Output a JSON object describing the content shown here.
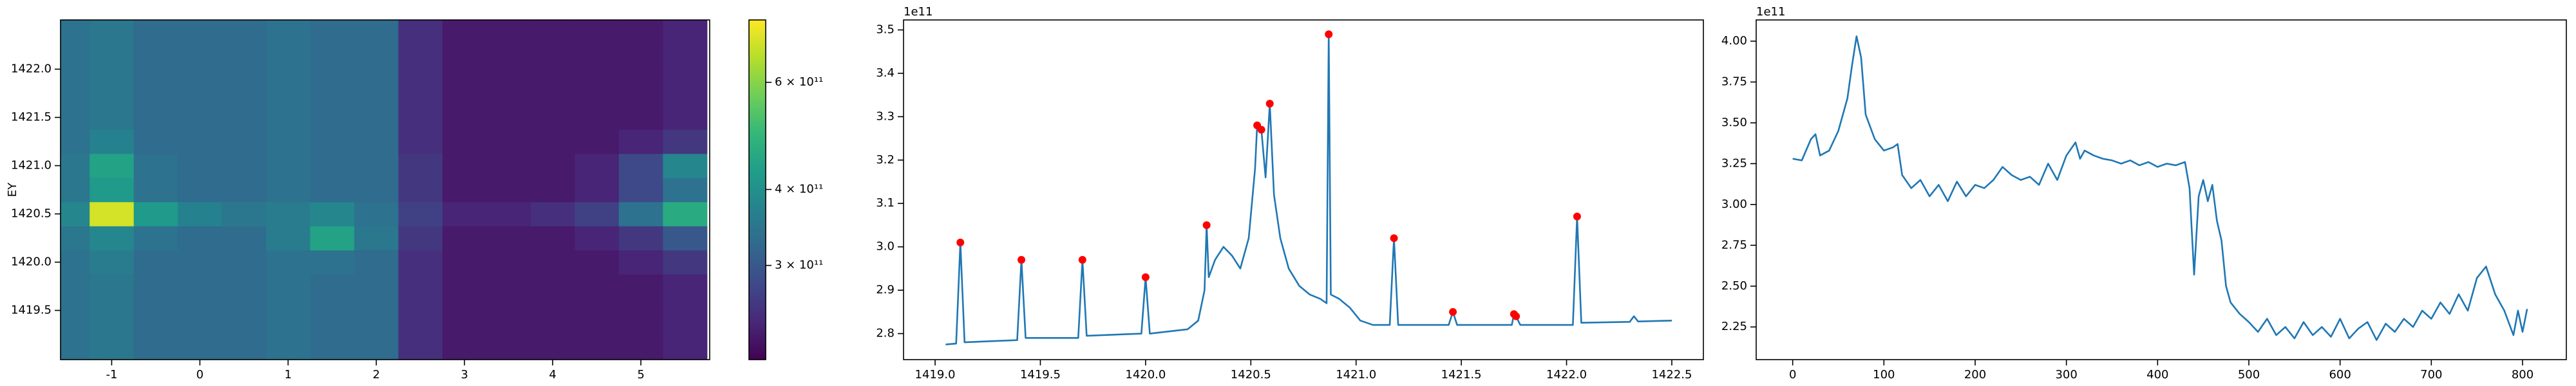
{
  "chart_data": [
    {
      "type": "heatmap",
      "ylabel": "EY",
      "colormap": "viridis",
      "x": [
        -1.5,
        -1.0,
        -0.5,
        0,
        0.5,
        1.0,
        1.5,
        2.0,
        2.5,
        3.0,
        3.5,
        4.0,
        4.5,
        5.0,
        5.5
      ],
      "y": [
        1419.0,
        1419.25,
        1419.5,
        1419.75,
        1420.0,
        1420.25,
        1420.5,
        1420.75,
        1421.0,
        1421.25,
        1421.5,
        1421.75,
        1422.0,
        1422.25,
        1422.5
      ],
      "z": [
        [
          340000000000.0,
          350000000000.0,
          330000000000.0,
          330000000000.0,
          330000000000.0,
          340000000000.0,
          330000000000.0,
          330000000000.0,
          250000000000.0,
          230000000000.0,
          230000000000.0,
          230000000000.0,
          230000000000.0,
          230000000000.0,
          240000000000.0
        ],
        [
          340000000000.0,
          350000000000.0,
          330000000000.0,
          330000000000.0,
          330000000000.0,
          340000000000.0,
          330000000000.0,
          330000000000.0,
          250000000000.0,
          230000000000.0,
          230000000000.0,
          230000000000.0,
          230000000000.0,
          230000000000.0,
          240000000000.0
        ],
        [
          340000000000.0,
          350000000000.0,
          330000000000.0,
          330000000000.0,
          330000000000.0,
          340000000000.0,
          330000000000.0,
          330000000000.0,
          250000000000.0,
          230000000000.0,
          230000000000.0,
          230000000000.0,
          230000000000.0,
          230000000000.0,
          240000000000.0
        ],
        [
          340000000000.0,
          350000000000.0,
          330000000000.0,
          330000000000.0,
          330000000000.0,
          340000000000.0,
          330000000000.0,
          330000000000.0,
          250000000000.0,
          230000000000.0,
          230000000000.0,
          230000000000.0,
          230000000000.0,
          230000000000.0,
          240000000000.0
        ],
        [
          340000000000.0,
          360000000000.0,
          330000000000.0,
          330000000000.0,
          330000000000.0,
          340000000000.0,
          340000000000.0,
          330000000000.0,
          250000000000.0,
          230000000000.0,
          230000000000.0,
          230000000000.0,
          230000000000.0,
          240000000000.0,
          260000000000.0
        ],
        [
          350000000000.0,
          380000000000.0,
          340000000000.0,
          330000000000.0,
          330000000000.0,
          360000000000.0,
          440000000000.0,
          350000000000.0,
          260000000000.0,
          230000000000.0,
          230000000000.0,
          230000000000.0,
          240000000000.0,
          260000000000.0,
          300000000000.0
        ],
        [
          380000000000.0,
          700000000000.0,
          420000000000.0,
          370000000000.0,
          350000000000.0,
          360000000000.0,
          380000000000.0,
          340000000000.0,
          270000000000.0,
          240000000000.0,
          240000000000.0,
          250000000000.0,
          270000000000.0,
          340000000000.0,
          460000000000.0
        ],
        [
          350000000000.0,
          420000000000.0,
          340000000000.0,
          330000000000.0,
          330000000000.0,
          340000000000.0,
          330000000000.0,
          330000000000.0,
          260000000000.0,
          230000000000.0,
          230000000000.0,
          230000000000.0,
          240000000000.0,
          280000000000.0,
          340000000000.0
        ],
        [
          350000000000.0,
          440000000000.0,
          340000000000.0,
          330000000000.0,
          330000000000.0,
          340000000000.0,
          330000000000.0,
          330000000000.0,
          260000000000.0,
          230000000000.0,
          230000000000.0,
          230000000000.0,
          240000000000.0,
          280000000000.0,
          380000000000.0
        ],
        [
          340000000000.0,
          370000000000.0,
          330000000000.0,
          330000000000.0,
          330000000000.0,
          340000000000.0,
          330000000000.0,
          330000000000.0,
          250000000000.0,
          230000000000.0,
          230000000000.0,
          230000000000.0,
          230000000000.0,
          240000000000.0,
          260000000000.0
        ],
        [
          340000000000.0,
          350000000000.0,
          330000000000.0,
          330000000000.0,
          330000000000.0,
          340000000000.0,
          330000000000.0,
          330000000000.0,
          250000000000.0,
          230000000000.0,
          230000000000.0,
          230000000000.0,
          230000000000.0,
          230000000000.0,
          240000000000.0
        ],
        [
          340000000000.0,
          350000000000.0,
          330000000000.0,
          330000000000.0,
          330000000000.0,
          340000000000.0,
          330000000000.0,
          330000000000.0,
          250000000000.0,
          230000000000.0,
          230000000000.0,
          230000000000.0,
          230000000000.0,
          230000000000.0,
          240000000000.0
        ],
        [
          340000000000.0,
          350000000000.0,
          330000000000.0,
          330000000000.0,
          330000000000.0,
          340000000000.0,
          330000000000.0,
          330000000000.0,
          250000000000.0,
          230000000000.0,
          230000000000.0,
          230000000000.0,
          230000000000.0,
          230000000000.0,
          240000000000.0
        ],
        [
          340000000000.0,
          350000000000.0,
          330000000000.0,
          330000000000.0,
          330000000000.0,
          340000000000.0,
          330000000000.0,
          330000000000.0,
          250000000000.0,
          230000000000.0,
          230000000000.0,
          230000000000.0,
          230000000000.0,
          230000000000.0,
          240000000000.0
        ],
        [
          340000000000.0,
          350000000000.0,
          330000000000.0,
          330000000000.0,
          330000000000.0,
          340000000000.0,
          330000000000.0,
          330000000000.0,
          250000000000.0,
          230000000000.0,
          230000000000.0,
          230000000000.0,
          230000000000.0,
          230000000000.0,
          240000000000.0
        ]
      ],
      "xlim": [
        -1.58,
        5.78
      ],
      "ylim": [
        1418.99,
        1422.51
      ],
      "xticks": [
        -1,
        0,
        1,
        2,
        3,
        4,
        5
      ],
      "yticks": [
        1419.5,
        {
          "value": 1420.0,
          "label": "1420.0"
        },
        1420.5,
        {
          "value": 1421.0,
          "label": "1421.0"
        },
        1421.5,
        {
          "value": 1422.0,
          "label": "1422.0"
        }
      ],
      "colorbar": {
        "scale": "log",
        "lim": [
          210000000000.0,
          760000000000.0
        ],
        "ticks": [
          {
            "value": 300000000000.0,
            "label": "3 × 10¹¹"
          },
          {
            "value": 400000000000.0,
            "label": "4 × 10¹¹"
          },
          {
            "value": 600000000000.0,
            "label": "6 × 10¹¹"
          }
        ]
      }
    },
    {
      "type": "line",
      "offset_label": "1e11",
      "series": [
        {
          "color": "#1f77b4",
          "mode": "line",
          "x": [
            1419.05,
            1419.1,
            1419.12,
            1419.14,
            1419.39,
            1419.41,
            1419.43,
            1419.68,
            1419.7,
            1419.72,
            1419.98,
            1420.0,
            1420.02,
            1420.2,
            1420.25,
            1420.28,
            1420.29,
            1420.3,
            1420.33,
            1420.37,
            1420.41,
            1420.45,
            1420.49,
            1420.52,
            1420.53,
            1420.55,
            1420.57,
            1420.59,
            1420.61,
            1420.64,
            1420.68,
            1420.73,
            1420.78,
            1420.83,
            1420.86,
            1420.87,
            1420.88,
            1420.92,
            1420.97,
            1421.02,
            1421.08,
            1421.16,
            1421.18,
            1421.2,
            1421.44,
            1421.46,
            1421.48,
            1421.74,
            1421.75,
            1421.76,
            1421.78,
            1422.03,
            1422.05,
            1422.07,
            1422.3,
            1422.32,
            1422.34,
            1422.5
          ],
          "values": [
            2.775,
            2.777,
            3.01,
            2.78,
            2.785,
            2.97,
            2.79,
            2.79,
            2.97,
            2.795,
            2.8,
            2.93,
            2.8,
            2.81,
            2.83,
            2.9,
            3.05,
            2.93,
            2.97,
            3.0,
            2.98,
            2.95,
            3.02,
            3.18,
            3.28,
            3.27,
            3.16,
            3.33,
            3.12,
            3.02,
            2.95,
            2.91,
            2.89,
            2.88,
            2.87,
            3.49,
            2.89,
            2.88,
            2.86,
            2.83,
            2.82,
            2.82,
            3.02,
            2.82,
            2.82,
            2.85,
            2.82,
            2.82,
            2.845,
            2.84,
            2.82,
            2.82,
            3.07,
            2.825,
            2.827,
            2.84,
            2.828,
            2.83
          ]
        },
        {
          "color": "#ff0000",
          "mode": "markers",
          "x": [
            1419.12,
            1419.41,
            1419.7,
            1420.0,
            1420.29,
            1420.53,
            1420.55,
            1420.59,
            1420.87,
            1421.18,
            1421.46,
            1421.75,
            1421.76,
            1422.05
          ],
          "values": [
            3.01,
            2.97,
            2.97,
            2.93,
            3.05,
            3.28,
            3.27,
            3.33,
            3.49,
            3.02,
            2.85,
            2.845,
            2.84,
            3.07
          ]
        }
      ],
      "xlim": [
        1418.85,
        1422.65
      ],
      "ylim": [
        2.74,
        3.523
      ],
      "xticks": [
        {
          "value": 1419.0,
          "label": "1419.0"
        },
        1419.5,
        {
          "value": 1420.0,
          "label": "1420.0"
        },
        1420.5,
        {
          "value": 1421.0,
          "label": "1421.0"
        },
        1421.5,
        {
          "value": 1422.0,
          "label": "1422.0"
        },
        1422.5
      ],
      "yticks": [
        2.8,
        2.9,
        {
          "value": 3.0,
          "label": "3.0"
        },
        3.1,
        3.2,
        3.3,
        3.4,
        3.5
      ]
    },
    {
      "type": "line",
      "offset_label": "1e11",
      "series": [
        {
          "color": "#1f77b4",
          "mode": "line",
          "x": [
            0,
            10,
            20,
            25,
            30,
            40,
            50,
            60,
            65,
            70,
            75,
            80,
            90,
            100,
            110,
            115,
            120,
            130,
            140,
            150,
            160,
            170,
            180,
            190,
            200,
            210,
            220,
            230,
            240,
            250,
            260,
            270,
            280,
            290,
            300,
            310,
            315,
            320,
            330,
            340,
            350,
            360,
            370,
            380,
            390,
            400,
            410,
            420,
            430,
            435,
            440,
            445,
            450,
            455,
            460,
            465,
            470,
            475,
            480,
            490,
            500,
            510,
            520,
            530,
            540,
            550,
            560,
            570,
            580,
            590,
            600,
            610,
            620,
            630,
            640,
            650,
            660,
            670,
            680,
            690,
            700,
            710,
            720,
            730,
            740,
            750,
            760,
            770,
            780,
            790,
            795,
            800,
            805
          ],
          "values": [
            3.28,
            3.27,
            3.4,
            3.43,
            3.3,
            3.33,
            3.45,
            3.65,
            3.85,
            4.03,
            3.9,
            3.55,
            3.4,
            3.33,
            3.35,
            3.37,
            3.18,
            3.1,
            3.15,
            3.05,
            3.12,
            3.02,
            3.14,
            3.05,
            3.12,
            3.1,
            3.15,
            3.23,
            3.18,
            3.15,
            3.17,
            3.12,
            3.25,
            3.15,
            3.3,
            3.38,
            3.28,
            3.33,
            3.3,
            3.28,
            3.27,
            3.25,
            3.27,
            3.24,
            3.26,
            3.23,
            3.25,
            3.24,
            3.26,
            3.1,
            2.57,
            3.05,
            3.15,
            3.02,
            3.12,
            2.9,
            2.78,
            2.5,
            2.4,
            2.33,
            2.28,
            2.22,
            2.3,
            2.2,
            2.25,
            2.18,
            2.28,
            2.2,
            2.25,
            2.19,
            2.3,
            2.18,
            2.24,
            2.28,
            2.17,
            2.27,
            2.22,
            2.3,
            2.25,
            2.35,
            2.3,
            2.4,
            2.33,
            2.45,
            2.35,
            2.55,
            2.62,
            2.45,
            2.35,
            2.2,
            2.35,
            2.22,
            2.36
          ]
        }
      ],
      "xlim": [
        -40,
        848
      ],
      "ylim": [
        2.05,
        4.13
      ],
      "xticks": [
        0,
        100,
        200,
        300,
        400,
        500,
        600,
        700,
        800
      ],
      "yticks": [
        {
          "value": 2.25,
          "label": "2.25"
        },
        {
          "value": 2.5,
          "label": "2.50"
        },
        {
          "value": 2.75,
          "label": "2.75"
        },
        {
          "value": 3.0,
          "label": "3.00"
        },
        {
          "value": 3.25,
          "label": "3.25"
        },
        {
          "value": 3.5,
          "label": "3.50"
        },
        {
          "value": 3.75,
          "label": "3.75"
        },
        {
          "value": 4.0,
          "label": "4.00"
        }
      ]
    }
  ]
}
